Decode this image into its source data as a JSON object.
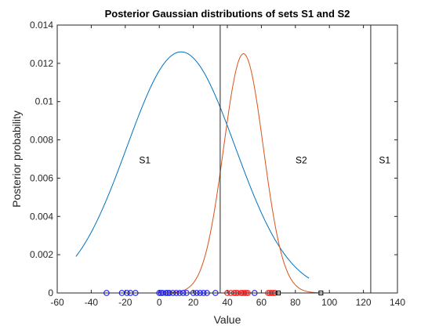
{
  "chart_data": {
    "type": "line",
    "title": "Posterior Gaussian distributions of sets S1 and S2",
    "xlabel": "Value",
    "ylabel": "Posterior probability",
    "xlim": [
      -60,
      140
    ],
    "ylim": [
      0,
      0.014
    ],
    "xticks": [
      -60,
      -40,
      -20,
      0,
      20,
      40,
      60,
      80,
      100,
      120,
      140
    ],
    "xtick_labels": [
      "-60",
      "-40",
      "-20",
      "0",
      "20",
      "40",
      "60",
      "80",
      "100",
      "120",
      "140"
    ],
    "yticks": [
      0,
      0.002,
      0.004,
      0.006,
      0.008,
      0.01,
      0.012,
      0.014
    ],
    "ytick_labels": [
      "0",
      "0.002",
      "0.004",
      "0.006",
      "0.008",
      "0.01",
      "0.012",
      "0.014"
    ],
    "grid": false,
    "series": [
      {
        "type": "gaussian",
        "mean": 12.8,
        "std": 31.8,
        "peak": 0.0126,
        "x_range": [
          -49,
          88
        ],
        "color": "#0072BD"
      },
      {
        "type": "gaussian",
        "mean": 49.5,
        "std": 11.7,
        "peak": 0.0125,
        "x_range": [
          0,
          95
        ],
        "color": "#D95319"
      }
    ],
    "decision_boundaries": [
      35.8,
      124.3
    ],
    "region_labels": [
      {
        "text": "S1",
        "x": -8.5,
        "y": 0.0069
      },
      {
        "text": "S2",
        "x": 83.5,
        "y": 0.0069
      },
      {
        "text": "S1",
        "x": 132.5,
        "y": 0.0069
      }
    ],
    "markers": {
      "S1_samples": {
        "color": "#0000FF",
        "shape": "circle",
        "x": [
          -31,
          -22,
          -19,
          -17,
          -14,
          0,
          1,
          2,
          4,
          5,
          6,
          8,
          10,
          12,
          14,
          16,
          20,
          22,
          24,
          26,
          28,
          33,
          56
        ]
      },
      "S2_samples": {
        "color": "#FF0000",
        "shape": "circle",
        "x": [
          40,
          42,
          44,
          45,
          46,
          48,
          49,
          50,
          51,
          52,
          64,
          65,
          66,
          67,
          68
        ]
      },
      "misclassified": {
        "color": "#000000",
        "shape": "square",
        "x": [
          70,
          95
        ]
      }
    }
  }
}
